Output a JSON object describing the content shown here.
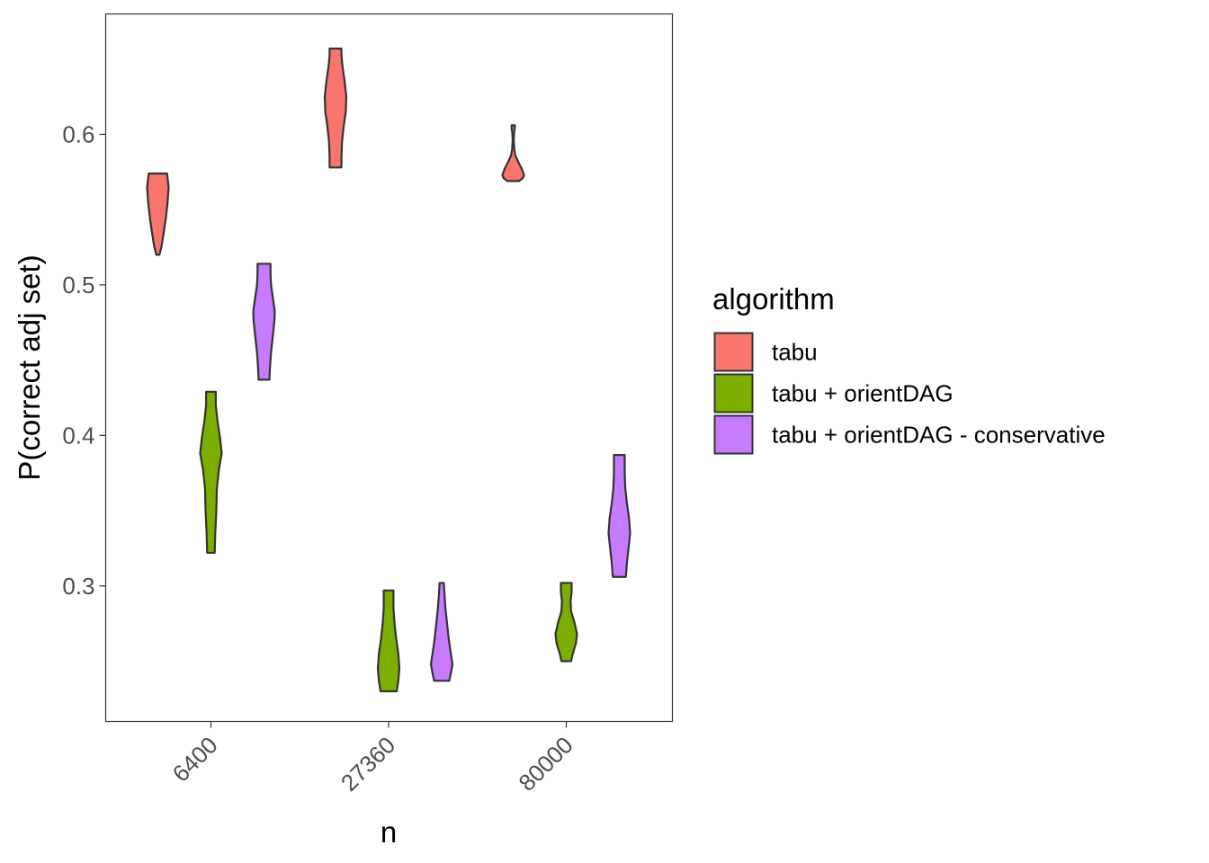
{
  "chart_data": {
    "type": "violin",
    "xlabel": "n",
    "ylabel": "P(correct adj set)",
    "categories": [
      "6400",
      "27360",
      "80000"
    ],
    "ylim": [
      0.21,
      0.68
    ],
    "yticks": [
      0.3,
      0.4,
      0.5,
      0.6
    ],
    "ytick_labels": [
      "0.3",
      "0.4",
      "0.5",
      "0.6"
    ],
    "grid": false,
    "legend": {
      "title": "algorithm",
      "position": "right",
      "entries": [
        "tabu",
        "tabu + orientDAG",
        "tabu + orientDAG - conservative"
      ]
    },
    "colors": [
      "#F8766D",
      "#7CAE00",
      "#C77CFF"
    ],
    "series": [
      {
        "name": "tabu",
        "violins": [
          {
            "category": "6400",
            "min": 0.52,
            "max": 0.574,
            "profile": [
              [
                0.52,
                0.15
              ],
              [
                0.526,
                0.35
              ],
              [
                0.535,
                0.55
              ],
              [
                0.545,
                0.75
              ],
              [
                0.555,
                0.9
              ],
              [
                0.565,
                1.0
              ],
              [
                0.571,
                0.9
              ],
              [
                0.574,
                0.85
              ]
            ]
          },
          {
            "category": "27360",
            "min": 0.578,
            "max": 0.657,
            "profile": [
              [
                0.578,
                0.55
              ],
              [
                0.585,
                0.55
              ],
              [
                0.595,
                0.6
              ],
              [
                0.605,
                0.75
              ],
              [
                0.615,
                0.95
              ],
              [
                0.625,
                1.0
              ],
              [
                0.635,
                0.85
              ],
              [
                0.645,
                0.65
              ],
              [
                0.652,
                0.55
              ],
              [
                0.657,
                0.55
              ]
            ]
          },
          {
            "category": "80000",
            "min": 0.569,
            "max": 0.606,
            "profile": [
              [
                0.569,
                0.55
              ],
              [
                0.571,
                0.9
              ],
              [
                0.573,
                1.0
              ],
              [
                0.577,
                0.8
              ],
              [
                0.582,
                0.45
              ],
              [
                0.586,
                0.2
              ],
              [
                0.59,
                0.1
              ],
              [
                0.596,
                0.05
              ],
              [
                0.601,
                0.08
              ],
              [
                0.604,
                0.15
              ],
              [
                0.606,
                0.15
              ]
            ]
          }
        ]
      },
      {
        "name": "tabu + orientDAG",
        "violins": [
          {
            "category": "6400",
            "min": 0.322,
            "max": 0.429,
            "profile": [
              [
                0.322,
                0.35
              ],
              [
                0.335,
                0.4
              ],
              [
                0.35,
                0.5
              ],
              [
                0.365,
                0.55
              ],
              [
                0.378,
                0.75
              ],
              [
                0.388,
                1.0
              ],
              [
                0.398,
                0.85
              ],
              [
                0.41,
                0.6
              ],
              [
                0.42,
                0.45
              ],
              [
                0.429,
                0.45
              ]
            ]
          },
          {
            "category": "27360",
            "min": 0.23,
            "max": 0.297,
            "profile": [
              [
                0.23,
                0.75
              ],
              [
                0.237,
                0.9
              ],
              [
                0.245,
                1.0
              ],
              [
                0.255,
                0.9
              ],
              [
                0.265,
                0.7
              ],
              [
                0.275,
                0.55
              ],
              [
                0.285,
                0.45
              ],
              [
                0.292,
                0.45
              ],
              [
                0.297,
                0.45
              ]
            ]
          },
          {
            "category": "80000",
            "min": 0.25,
            "max": 0.302,
            "profile": [
              [
                0.25,
                0.45
              ],
              [
                0.255,
                0.6
              ],
              [
                0.262,
                0.9
              ],
              [
                0.268,
                1.0
              ],
              [
                0.276,
                0.75
              ],
              [
                0.283,
                0.45
              ],
              [
                0.29,
                0.4
              ],
              [
                0.296,
                0.5
              ],
              [
                0.302,
                0.5
              ]
            ]
          }
        ]
      },
      {
        "name": "tabu + orientDAG - conservative",
        "violins": [
          {
            "category": "6400",
            "min": 0.437,
            "max": 0.514,
            "profile": [
              [
                0.437,
                0.5
              ],
              [
                0.445,
                0.55
              ],
              [
                0.455,
                0.65
              ],
              [
                0.465,
                0.8
              ],
              [
                0.475,
                0.95
              ],
              [
                0.482,
                1.0
              ],
              [
                0.49,
                0.85
              ],
              [
                0.5,
                0.65
              ],
              [
                0.508,
                0.6
              ],
              [
                0.514,
                0.6
              ]
            ]
          },
          {
            "category": "27360",
            "min": 0.237,
            "max": 0.302,
            "profile": [
              [
                0.237,
                0.7
              ],
              [
                0.242,
                0.85
              ],
              [
                0.248,
                1.0
              ],
              [
                0.255,
                0.85
              ],
              [
                0.265,
                0.65
              ],
              [
                0.275,
                0.5
              ],
              [
                0.285,
                0.35
              ],
              [
                0.295,
                0.25
              ],
              [
                0.302,
                0.2
              ]
            ]
          },
          {
            "category": "80000",
            "min": 0.306,
            "max": 0.387,
            "profile": [
              [
                0.306,
                0.6
              ],
              [
                0.315,
                0.7
              ],
              [
                0.325,
                0.85
              ],
              [
                0.335,
                1.0
              ],
              [
                0.345,
                0.9
              ],
              [
                0.355,
                0.7
              ],
              [
                0.365,
                0.55
              ],
              [
                0.375,
                0.5
              ],
              [
                0.387,
                0.5
              ]
            ]
          }
        ]
      }
    ]
  }
}
